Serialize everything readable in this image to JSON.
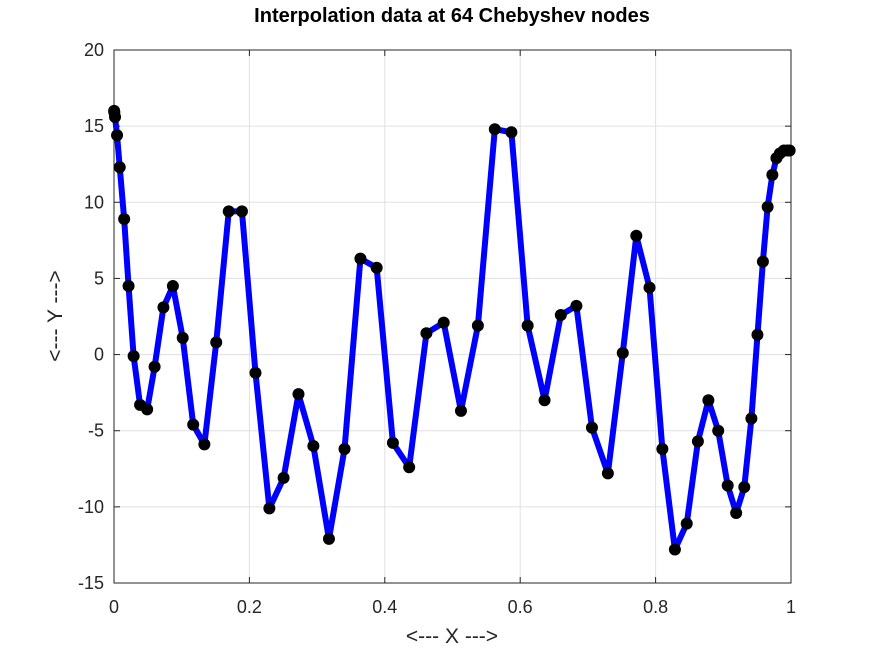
{
  "chart_data": {
    "type": "line",
    "title": "Interpolation data at 64 Chebyshev nodes",
    "xlabel": "<--- X --->",
    "ylabel": "<--- Y --->",
    "xlim": [
      0,
      1
    ],
    "ylim": [
      -15,
      20
    ],
    "xticks": [
      0,
      0.2,
      0.4,
      0.6,
      0.8,
      1
    ],
    "xtick_labels": [
      "0",
      "0.2",
      "0.4",
      "0.6",
      "0.8",
      "1"
    ],
    "yticks": [
      -15,
      -10,
      -5,
      0,
      5,
      10,
      15,
      20
    ],
    "ytick_labels": [
      "-15",
      "-10",
      "-5",
      "0",
      "5",
      "10",
      "15",
      "20"
    ],
    "grid": true,
    "series": [
      {
        "line_color": "#0000ff",
        "marker_color": "#000000",
        "x": [
          0.0002,
          0.0005,
          0.0015,
          0.0045,
          0.0085,
          0.015,
          0.0215,
          0.029,
          0.0385,
          0.049,
          0.06,
          0.073,
          0.087,
          0.1015,
          0.117,
          0.1335,
          0.151,
          0.1695,
          0.189,
          0.209,
          0.2295,
          0.2505,
          0.2725,
          0.2945,
          0.3175,
          0.3405,
          0.364,
          0.388,
          0.412,
          0.436,
          0.4615,
          0.487,
          0.5125,
          0.5375,
          0.5625,
          0.587,
          0.611,
          0.636,
          0.66,
          0.683,
          0.706,
          0.7295,
          0.7515,
          0.7715,
          0.791,
          0.81,
          0.8285,
          0.846,
          0.8625,
          0.878,
          0.8925,
          0.9065,
          0.919,
          0.931,
          0.9415,
          0.9505,
          0.9585,
          0.9655,
          0.9725,
          0.9785,
          0.9835,
          0.9895,
          0.9945,
          0.998
        ],
        "y": [
          16.0,
          15.9,
          15.6,
          14.4,
          12.3,
          8.9,
          4.5,
          -0.1,
          -3.3,
          -3.6,
          -0.8,
          3.1,
          4.5,
          1.1,
          -4.6,
          -5.9,
          0.8,
          9.4,
          9.4,
          -1.2,
          -10.1,
          -8.1,
          -2.6,
          -6.0,
          -12.1,
          -6.2,
          6.3,
          5.7,
          -5.8,
          -7.4,
          1.4,
          2.1,
          -3.7,
          1.9,
          14.8,
          14.6,
          1.9,
          -3.0,
          2.6,
          3.2,
          -4.8,
          -7.8,
          0.1,
          7.8,
          4.4,
          -6.2,
          -12.8,
          -11.1,
          -5.7,
          -3.0,
          -5.0,
          -8.6,
          -10.4,
          -8.7,
          -4.2,
          1.3,
          6.1,
          9.7,
          11.8,
          12.9,
          13.2,
          13.4,
          13.4,
          13.4
        ]
      }
    ]
  }
}
